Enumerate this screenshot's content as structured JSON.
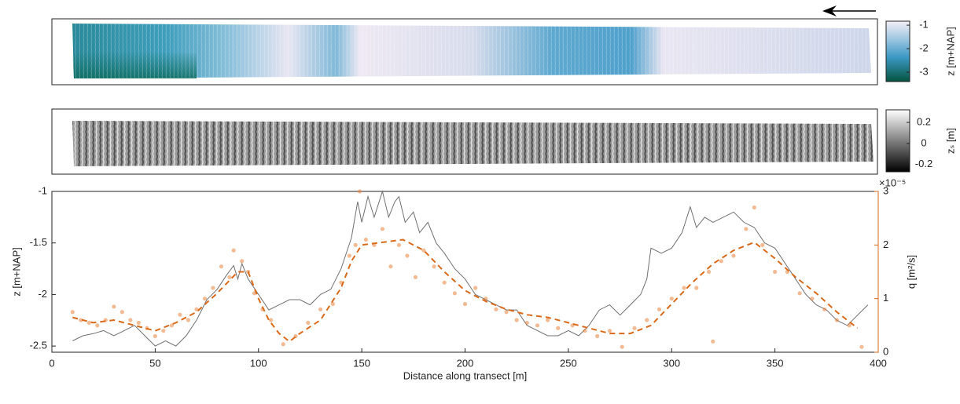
{
  "chart_data": [
    {
      "type": "image",
      "colorbar": {
        "label": "z [m+NAP]",
        "clim": [
          -3.4,
          -0.83
        ],
        "cticks": [
          -1,
          -2,
          -3
        ]
      }
    },
    {
      "type": "image",
      "colorbar": {
        "label": "zₛ [m]",
        "clim": [
          -0.27,
          0.32
        ],
        "cticks": [
          0.2,
          0,
          -0.2
        ]
      }
    },
    {
      "type": "line",
      "xlabel": "Distance along transect [m]",
      "ylabel": "z [m+NAP]",
      "y2label": "q [m²/s]",
      "y2multiplier": "×10⁻⁵",
      "xlim": [
        0,
        400
      ],
      "xticks": [
        0,
        50,
        100,
        150,
        200,
        250,
        300,
        350,
        400
      ],
      "ylim": [
        -2.56,
        -1
      ],
      "yticks": [
        -2.5,
        -2,
        -1.5,
        -1
      ],
      "y2lim": [
        0,
        3
      ],
      "y2ticks": [
        0,
        1,
        2,
        3
      ],
      "y2color": "#d96a1a",
      "series": [
        {
          "type": "line",
          "axis": "y",
          "color": "#707070",
          "line_style": "solid",
          "x": [
            10,
            15,
            20,
            25,
            30,
            35,
            40,
            45,
            50,
            55,
            60,
            65,
            70,
            75,
            80,
            85,
            88,
            90,
            92,
            95,
            100,
            105,
            110,
            115,
            120,
            125,
            130,
            135,
            140,
            145,
            148,
            150,
            153,
            156,
            160,
            163,
            166,
            168,
            171,
            175,
            178,
            182,
            186,
            190,
            195,
            200,
            205,
            210,
            215,
            220,
            225,
            230,
            235,
            240,
            245,
            250,
            255,
            260,
            265,
            270,
            275,
            280,
            285,
            288,
            290,
            295,
            300,
            305,
            309,
            312,
            316,
            320,
            325,
            330,
            335,
            340,
            345,
            350,
            355,
            360,
            365,
            370,
            375,
            380,
            385,
            390,
            395
          ],
          "values": [
            -2.45,
            -2.4,
            -2.38,
            -2.35,
            -2.4,
            -2.35,
            -2.3,
            -2.4,
            -2.5,
            -2.45,
            -2.5,
            -2.4,
            -2.25,
            -2.05,
            -1.95,
            -1.8,
            -1.72,
            -1.85,
            -1.7,
            -1.85,
            -2.0,
            -2.15,
            -2.1,
            -2.05,
            -2.05,
            -2.1,
            -2.0,
            -1.95,
            -1.75,
            -1.45,
            -1.1,
            -1.3,
            -1.05,
            -1.25,
            -1.0,
            -1.25,
            -1.1,
            -1.05,
            -1.3,
            -1.2,
            -1.4,
            -1.3,
            -1.5,
            -1.6,
            -1.75,
            -1.85,
            -2.0,
            -2.05,
            -2.1,
            -2.15,
            -2.15,
            -2.3,
            -2.35,
            -2.4,
            -2.4,
            -2.35,
            -2.4,
            -2.3,
            -2.15,
            -2.1,
            -2.2,
            -2.1,
            -2.0,
            -1.85,
            -1.55,
            -1.6,
            -1.55,
            -1.4,
            -1.15,
            -1.35,
            -1.25,
            -1.3,
            -1.25,
            -1.2,
            -1.3,
            -1.35,
            -1.5,
            -1.55,
            -1.7,
            -1.85,
            -2.0,
            -2.1,
            -2.15,
            -2.25,
            -2.3,
            -2.2,
            -2.1
          ]
        },
        {
          "type": "scatter",
          "axis": "y2",
          "color": "#e8833a",
          "x": [
            10,
            14,
            18,
            22,
            26,
            30,
            34,
            38,
            42,
            46,
            50,
            54,
            58,
            62,
            66,
            70,
            74,
            78,
            82,
            86,
            88,
            92,
            95,
            98,
            102,
            106,
            112,
            118,
            124,
            130,
            136,
            140,
            144,
            147,
            149,
            152,
            156,
            160,
            164,
            168,
            172,
            176,
            180,
            185,
            190,
            195,
            200,
            205,
            210,
            215,
            220,
            225,
            230,
            235,
            240,
            245,
            252,
            258,
            264,
            270,
            276,
            282,
            288,
            294,
            300,
            306,
            312,
            318,
            320,
            324,
            330,
            336,
            340,
            344,
            350,
            356,
            362,
            368,
            374,
            380,
            386,
            392
          ],
          "values": [
            0.75,
            0.6,
            0.55,
            0.5,
            0.6,
            0.85,
            0.75,
            0.6,
            0.55,
            0.45,
            0.3,
            0.4,
            0.5,
            0.7,
            0.6,
            0.8,
            1.0,
            1.2,
            1.6,
            1.4,
            1.9,
            1.7,
            1.5,
            1.1,
            0.8,
            0.6,
            0.15,
            0.3,
            0.55,
            0.8,
            0.9,
            1.3,
            1.8,
            2.0,
            3.0,
            2.1,
            2.0,
            2.3,
            1.6,
            2.0,
            1.8,
            1.4,
            1.9,
            1.6,
            1.3,
            1.1,
            0.9,
            1.2,
            1.0,
            0.8,
            0.75,
            0.6,
            0.55,
            0.5,
            0.6,
            0.45,
            0.5,
            0.4,
            0.3,
            0.4,
            0.1,
            0.45,
            0.6,
            0.8,
            1.0,
            1.2,
            1.2,
            1.5,
            0.2,
            1.7,
            1.8,
            2.3,
            2.7,
            2.0,
            1.5,
            1.5,
            1.1,
            1.0,
            0.8,
            0.6,
            0.5,
            0.1
          ]
        },
        {
          "type": "line",
          "axis": "y2",
          "color": "#d96a1a",
          "line_style": "dashed",
          "x": [
            10,
            20,
            30,
            40,
            50,
            60,
            70,
            80,
            90,
            95,
            100,
            105,
            110,
            115,
            120,
            130,
            140,
            145,
            150,
            160,
            170,
            180,
            190,
            200,
            210,
            220,
            230,
            240,
            250,
            260,
            270,
            280,
            290,
            300,
            310,
            320,
            330,
            340,
            350,
            360,
            370,
            380,
            390
          ],
          "values": [
            0.65,
            0.55,
            0.6,
            0.5,
            0.4,
            0.55,
            0.75,
            1.1,
            1.5,
            1.5,
            1.0,
            0.6,
            0.35,
            0.2,
            0.35,
            0.6,
            1.2,
            1.7,
            2.0,
            2.05,
            2.1,
            1.9,
            1.5,
            1.15,
            0.95,
            0.8,
            0.7,
            0.65,
            0.55,
            0.45,
            0.35,
            0.35,
            0.5,
            0.9,
            1.3,
            1.65,
            1.9,
            2.05,
            1.75,
            1.4,
            1.1,
            0.75,
            0.45
          ]
        }
      ]
    }
  ]
}
